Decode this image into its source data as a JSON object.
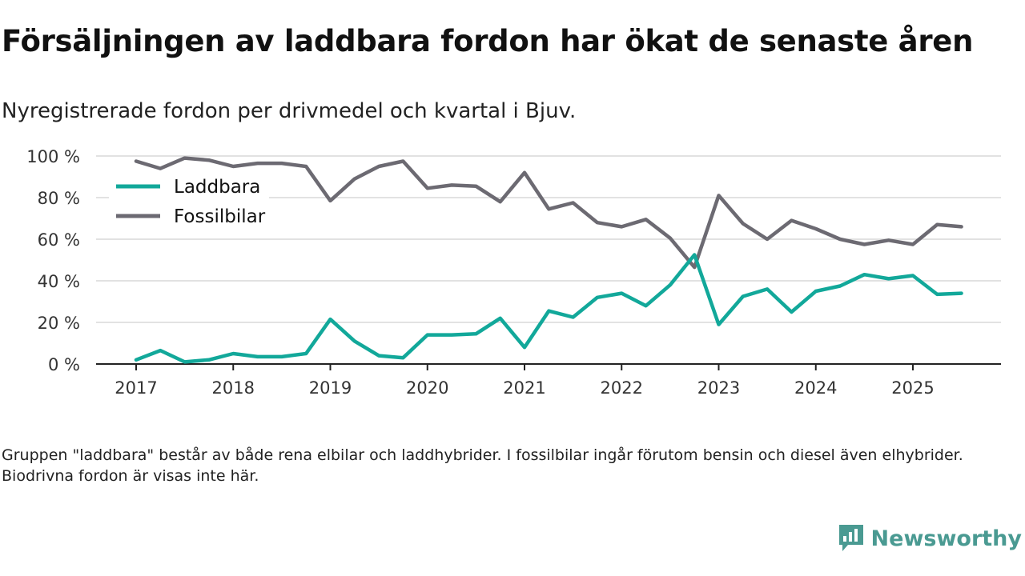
{
  "header": {
    "title": "Försäljningen av laddbara fordon har ökat de senaste åren",
    "subtitle": "Nyregistrerade fordon per drivmedel och kvartal i Bjuv."
  },
  "footer": {
    "note": "Gruppen \"laddbara\" består av både rena elbilar och laddhybrider. I fossilbilar ingår förutom bensin och diesel även elhybrider. Biodrivna fordon är visas inte här.",
    "brand": "Newsworthy"
  },
  "colors": {
    "laddbara": "#12a89a",
    "fossil": "#6c6a72",
    "grid": "#d9d9d9",
    "brand": "#4a9a92"
  },
  "chart_data": {
    "type": "line",
    "title": "Försäljningen av laddbara fordon har ökat de senaste åren",
    "subtitle": "Nyregistrerade fordon per drivmedel och kvartal i Bjuv.",
    "xlabel": "",
    "ylabel": "",
    "x_ticks": [
      "2017",
      "2018",
      "2019",
      "2020",
      "2021",
      "2022",
      "2023",
      "2024",
      "2025"
    ],
    "y_ticks": [
      "0 %",
      "20 %",
      "40 %",
      "60 %",
      "80 %",
      "100 %"
    ],
    "ylim": [
      0,
      100
    ],
    "x_start_year": 2017,
    "points_per_year": 4,
    "legend_position": "top-left",
    "grid": true,
    "series": [
      {
        "name": "Laddbara",
        "color": "#12a89a",
        "values": [
          2,
          6.5,
          1,
          2,
          5,
          3.5,
          3.5,
          5,
          21.5,
          11,
          4,
          3,
          14,
          14,
          14.5,
          22,
          8,
          25.5,
          22.5,
          32,
          34,
          28,
          38,
          52.5,
          19,
          32.5,
          36,
          25,
          35,
          37.5,
          43,
          41,
          42.5,
          33.5,
          34
        ]
      },
      {
        "name": "Fossilbilar",
        "color": "#6c6a72",
        "values": [
          97.5,
          94,
          99,
          98,
          95,
          96.5,
          96.5,
          95,
          78.5,
          89,
          95,
          97.5,
          84.5,
          86,
          85.5,
          78,
          92,
          74.5,
          77.5,
          68,
          66,
          69.5,
          60.5,
          46.5,
          81,
          67.5,
          60,
          69,
          65,
          60,
          57.5,
          59.5,
          57.5,
          67,
          66
        ]
      }
    ]
  }
}
